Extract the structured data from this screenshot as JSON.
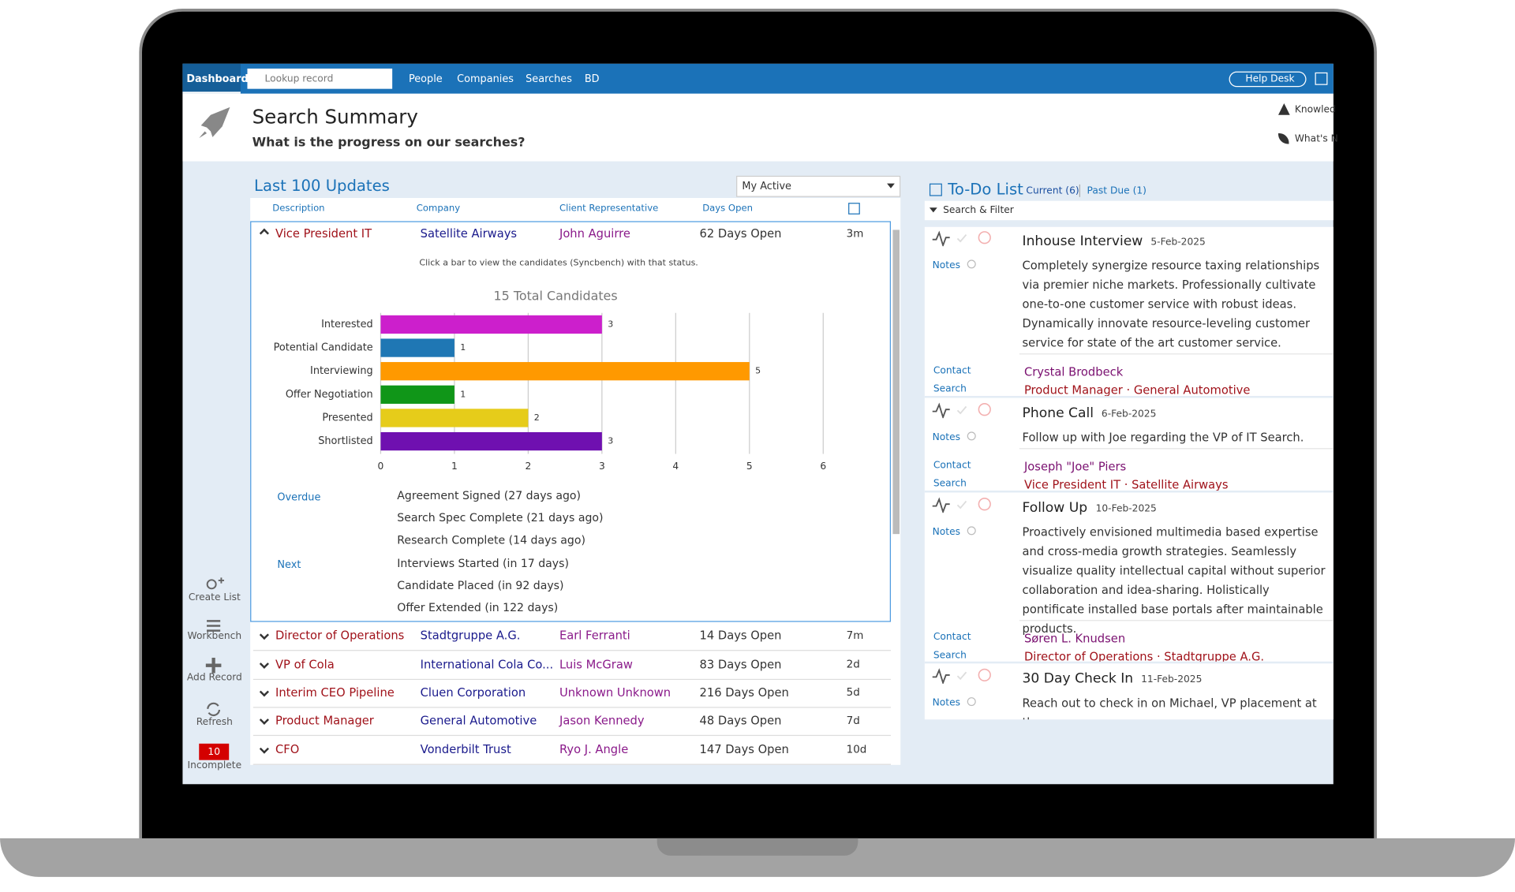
{
  "nav": {
    "items": [
      "Dashboard",
      "People",
      "Companies",
      "Searches",
      "BD"
    ],
    "search_placeholder": "Lookup record",
    "help": "Help Desk"
  },
  "header": {
    "title": "Search Summary",
    "subtitle": "What is the progress on our searches?",
    "links": [
      "Knowled",
      "What's N"
    ]
  },
  "sidebar": {
    "items": [
      "Create List",
      "Workbench",
      "Add Record",
      "Refresh"
    ],
    "incomplete_count": "10",
    "incomplete_label": "Incomplete"
  },
  "updates": {
    "title": "Last 100 Updates",
    "filter": "My Active",
    "columns": [
      "Description",
      "Company",
      "Client Representative",
      "Days Open"
    ],
    "rows": [
      [
        "Vice President IT",
        "Satellite Airways",
        "John Aguirre",
        "62 Days Open",
        "3m"
      ],
      [
        "Director of Operations",
        "Stadtgruppe A.G.",
        "Earl Ferranti",
        "14 Days Open",
        "7m"
      ],
      [
        "VP of Cola",
        "International Cola Co...",
        "Luis McGraw",
        "83 Days Open",
        "2d"
      ],
      [
        "Interim CEO Pipeline",
        "Cluen Corporation",
        "Unknown Unknown",
        "216 Days Open",
        "5d"
      ],
      [
        "Product Manager",
        "General Automotive",
        "Jason Kennedy",
        "48 Days Open",
        "7d"
      ],
      [
        "CFO",
        "Vonderbilt Trust",
        "Ryo J. Angle",
        "147 Days Open",
        "10d"
      ]
    ],
    "chart_hint": "Click a bar to view the candidates (Syncbench) with that status.",
    "overdue_label": "Overdue",
    "overdue": [
      "Agreement Signed (27 days ago)",
      "Search Spec Complete (21 days ago)",
      "Research Complete (14 days ago)"
    ],
    "next_label": "Next",
    "next": [
      "Interviews Started (in 17 days)",
      "Candidate Placed (in 92 days)",
      "Offer Extended (in 122 days)"
    ]
  },
  "chart_data": {
    "type": "bar",
    "horizontal": true,
    "title": "15 Total Candidates",
    "categories": [
      "Interested",
      "Potential Candidate",
      "Interviewing",
      "Offer Negotiation",
      "Presented",
      "Shortlisted"
    ],
    "values": [
      3,
      1,
      5,
      1,
      2,
      3
    ],
    "colors": [
      "#cc1fcc",
      "#1f77b4",
      "#ff9900",
      "#109618",
      "#e6cc1a",
      "#6f10b0"
    ],
    "xlim": [
      0,
      6
    ],
    "xticks": [
      0,
      1,
      2,
      3,
      4,
      5,
      6
    ],
    "grid": true
  },
  "todo": {
    "title": "To-Do List",
    "tabs": [
      "Current (6)",
      "Past Due (1)"
    ],
    "filter": "Search & Filter",
    "labels": [
      "Notes",
      "Contact",
      "Search"
    ],
    "items": [
      {
        "title": "Inhouse Interview",
        "date": "5-Feb-2025",
        "text": "Completely synergize resource taxing relationships via premier niche markets. Professionally cultivate one-to-one customer service with robust ideas. Dynamically innovate resource-leveling customer service for state of the art customer service.",
        "contact": "Crystal Brodbeck",
        "search": "Product Manager · General Automotive"
      },
      {
        "title": "Phone Call",
        "date": "6-Feb-2025",
        "text": "Follow up with Joe regarding the VP of IT Search.",
        "contact": "Joseph \"Joe\" Piers",
        "search": "Vice President IT · Satellite Airways"
      },
      {
        "title": "Follow Up",
        "date": "10-Feb-2025",
        "text": "Proactively envisioned multimedia based expertise and cross-media growth strategies. Seamlessly visualize quality intellectual capital without superior collaboration and idea-sharing. Holistically pontificate installed base portals after maintainable products.",
        "contact": "Søren L. Knudsen",
        "search": "Director of Operations · Stadtgruppe A.G."
      },
      {
        "title": "30 Day Check In",
        "date": "11-Feb-2025",
        "text": "Reach out to check in on Michael, VP placement at the"
      }
    ]
  }
}
